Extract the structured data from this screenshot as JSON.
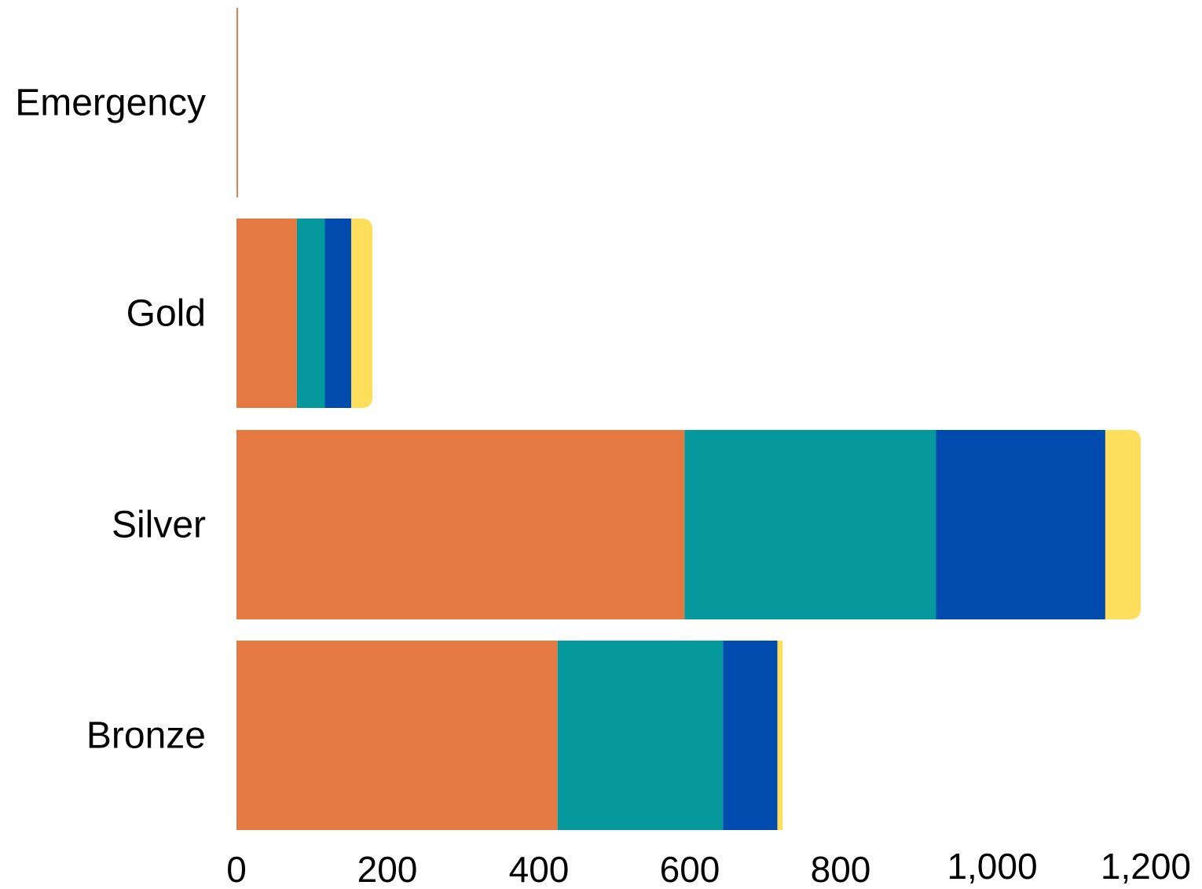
{
  "chart_data": {
    "type": "bar",
    "orientation": "horizontal",
    "stacked": true,
    "categories": [
      "Emergency",
      "Gold",
      "Silver",
      "Bronze"
    ],
    "series": [
      {
        "color": "#E47A41",
        "values": [
          2,
          80,
          593,
          425
        ]
      },
      {
        "color": "#05999D",
        "values": [
          0,
          37,
          333,
          219
        ]
      },
      {
        "color": "#004BAD",
        "values": [
          0,
          35,
          224,
          72
        ]
      },
      {
        "color": "#FEDE5D",
        "values": [
          0,
          28,
          47,
          7
        ]
      }
    ],
    "xlim": [
      0,
      1200
    ],
    "x_ticks": [
      "0",
      "200",
      "400",
      "600",
      "800",
      "1,000",
      "1,200"
    ],
    "title": "",
    "xlabel": "",
    "ylabel": "",
    "grid": false,
    "legend": "none"
  }
}
